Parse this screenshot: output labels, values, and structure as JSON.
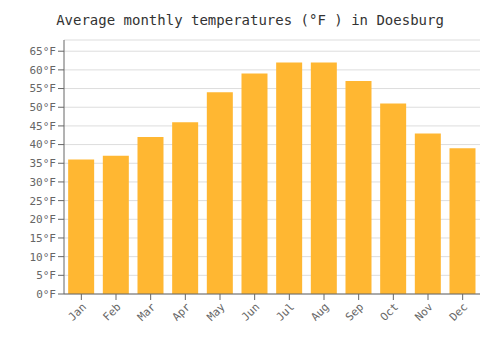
{
  "chart_data": {
    "type": "bar",
    "title": "Average monthly temperatures (°F ) in Doesburg",
    "categories": [
      "Jan",
      "Feb",
      "Mar",
      "Apr",
      "May",
      "Jun",
      "Jul",
      "Aug",
      "Sep",
      "Oct",
      "Nov",
      "Dec"
    ],
    "values": [
      36,
      37,
      42,
      46,
      54,
      59,
      62,
      62,
      57,
      51,
      43,
      39
    ],
    "color": "#FFB732",
    "ylim": [
      0,
      68
    ],
    "yticks": [
      {
        "value": 0,
        "label": "0°F"
      },
      {
        "value": 5,
        "label": "5°F"
      },
      {
        "value": 10,
        "label": "10°F"
      },
      {
        "value": 15,
        "label": "15°F"
      },
      {
        "value": 20,
        "label": "20°F"
      },
      {
        "value": 25,
        "label": "25°F"
      },
      {
        "value": 30,
        "label": "30°F"
      },
      {
        "value": 35,
        "label": "35°F"
      },
      {
        "value": 40,
        "label": "40°F"
      },
      {
        "value": 45,
        "label": "45°F"
      },
      {
        "value": 50,
        "label": "50°F"
      },
      {
        "value": 55,
        "label": "55°F"
      },
      {
        "value": 60,
        "label": "60°F"
      },
      {
        "value": 65,
        "label": "65°F"
      }
    ],
    "grid": true
  }
}
